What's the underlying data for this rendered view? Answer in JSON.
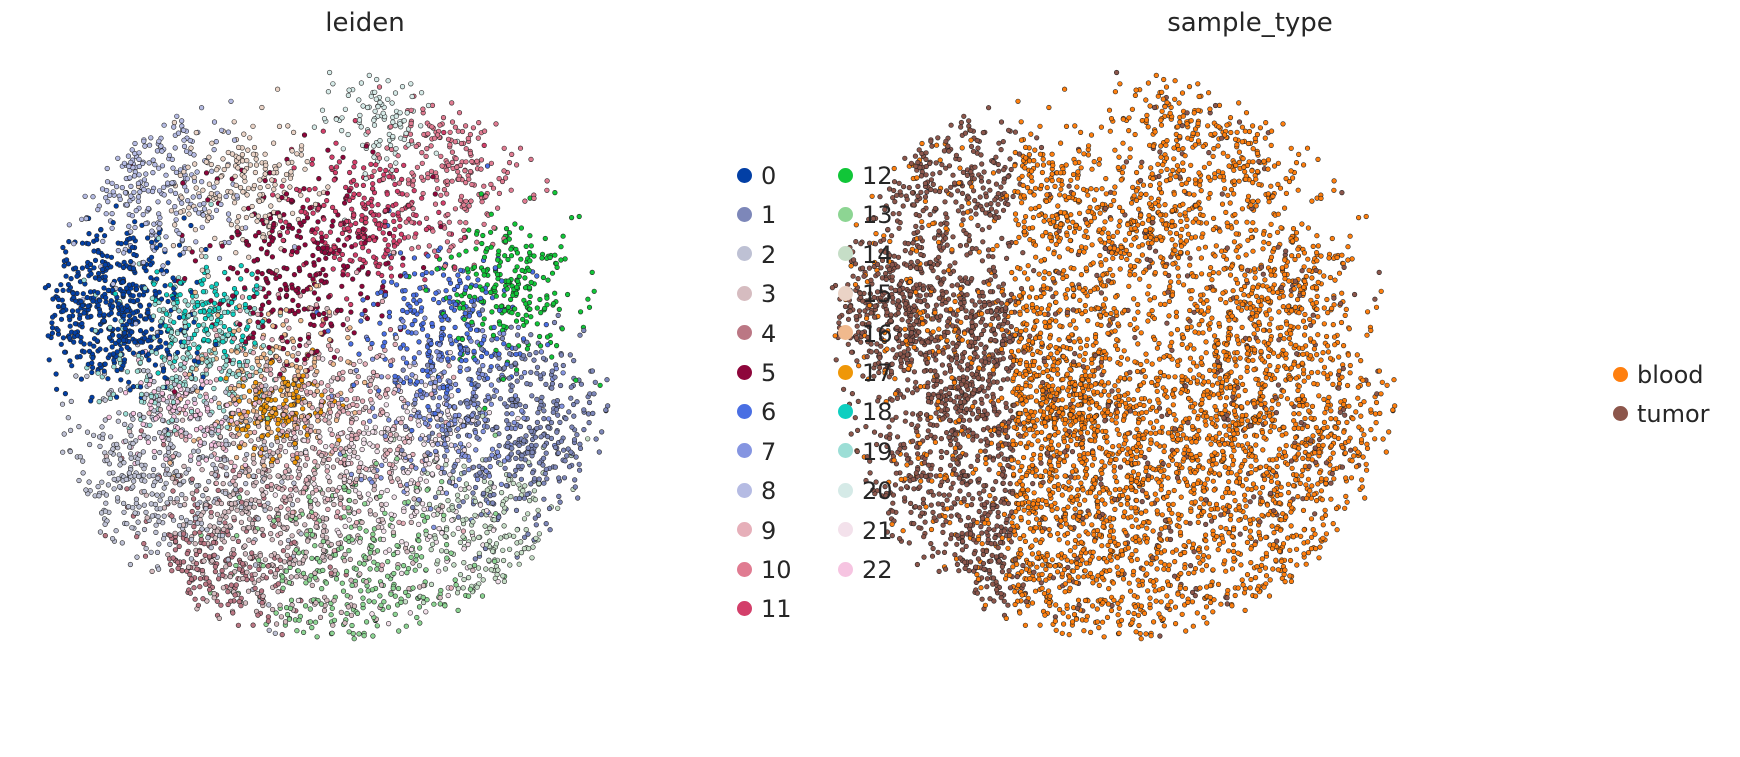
{
  "chart_data": [
    {
      "type": "scatter",
      "title": "leiden",
      "xlabel": "",
      "ylabel": "",
      "grid": false,
      "legend_position": "right",
      "categories": [
        {
          "label": "0",
          "color": "#023fa5"
        },
        {
          "label": "1",
          "color": "#7d87b9"
        },
        {
          "label": "2",
          "color": "#bec1d4"
        },
        {
          "label": "3",
          "color": "#d6bcc0"
        },
        {
          "label": "4",
          "color": "#bb7784"
        },
        {
          "label": "5",
          "color": "#8e063b"
        },
        {
          "label": "6",
          "color": "#4a6fe3"
        },
        {
          "label": "7",
          "color": "#8595e1"
        },
        {
          "label": "8",
          "color": "#b5bbe3"
        },
        {
          "label": "9",
          "color": "#e6afb9"
        },
        {
          "label": "10",
          "color": "#e07b91"
        },
        {
          "label": "11",
          "color": "#d33f6a"
        },
        {
          "label": "12",
          "color": "#11c638"
        },
        {
          "label": "13",
          "color": "#8dd593"
        },
        {
          "label": "14",
          "color": "#c6dec7"
        },
        {
          "label": "15",
          "color": "#ead3c6"
        },
        {
          "label": "16",
          "color": "#f0b98d"
        },
        {
          "label": "17",
          "color": "#ef9708"
        },
        {
          "label": "18",
          "color": "#0fcfc0"
        },
        {
          "label": "19",
          "color": "#9cded6"
        },
        {
          "label": "20",
          "color": "#d5eae7"
        },
        {
          "label": "21",
          "color": "#f3e1eb"
        },
        {
          "label": "22",
          "color": "#f6c4e1"
        }
      ]
    },
    {
      "type": "scatter",
      "title": "sample_type",
      "xlabel": "",
      "ylabel": "",
      "grid": false,
      "legend_position": "right",
      "categories": [
        {
          "label": "blood",
          "color": "#ff7f0e"
        },
        {
          "label": "tumor",
          "color": "#8c564b"
        }
      ]
    }
  ]
}
